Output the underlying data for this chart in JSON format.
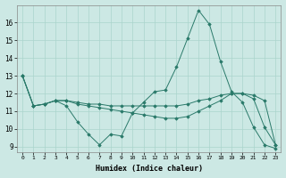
{
  "xlabel": "Humidex (Indice chaleur)",
  "bg_color": "#cce8e4",
  "grid_color": "#aad4cc",
  "line_color": "#2a7a6a",
  "xlim": [
    -0.5,
    23.5
  ],
  "ylim": [
    8.7,
    17.0
  ],
  "yticks": [
    9,
    10,
    11,
    12,
    13,
    14,
    15,
    16
  ],
  "xticks": [
    0,
    1,
    2,
    3,
    4,
    5,
    6,
    7,
    8,
    9,
    10,
    11,
    12,
    13,
    14,
    15,
    16,
    17,
    18,
    19,
    20,
    21,
    22,
    23
  ],
  "series": [
    [
      13,
      11.3,
      11.4,
      11.6,
      11.3,
      10.4,
      9.7,
      9.1,
      9.7,
      9.6,
      10.9,
      11.5,
      12.1,
      12.2,
      13.5,
      15.1,
      16.7,
      15.9,
      13.8,
      12.1,
      11.5,
      10.1,
      9.1,
      8.9
    ],
    [
      13,
      11.3,
      11.4,
      11.6,
      11.6,
      11.5,
      11.4,
      11.4,
      11.3,
      11.3,
      11.3,
      11.3,
      11.3,
      11.3,
      11.3,
      11.4,
      11.6,
      11.7,
      11.9,
      12.0,
      12.0,
      11.9,
      11.6,
      9.1
    ],
    [
      13,
      11.3,
      11.4,
      11.6,
      11.6,
      11.4,
      11.3,
      11.2,
      11.1,
      11.0,
      10.9,
      10.8,
      10.7,
      10.6,
      10.6,
      10.7,
      11.0,
      11.3,
      11.6,
      12.0,
      12.0,
      11.7,
      10.1,
      9.1
    ]
  ]
}
